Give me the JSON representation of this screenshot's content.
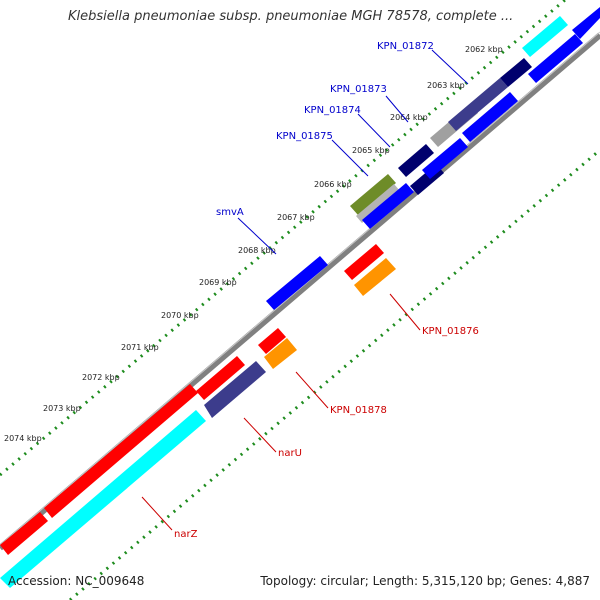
{
  "header": {
    "title": "Klebsiella pneumoniae subsp. pneumoniae MGH 78578, complete ..."
  },
  "footer": {
    "accession": "Accession: NC_009648",
    "topology": "Topology: circular; Length: 5,315,120 bp; Genes: 4,887"
  },
  "colors": {
    "forward_gene": "#0000ff",
    "reverse_gene": "#ff0000",
    "dark_gene": "#00006e",
    "navy_gene": "#3c3c8c",
    "cyan_gene": "#00ffff",
    "orange_gene": "#ff9400",
    "olive_gene": "#6e8c28",
    "backbone": "#808080",
    "dotted_track": "#1e8c1e"
  },
  "scale_labels": [
    "2062 kbp",
    "2063 kbp",
    "2064 kbp",
    "2065 kbp",
    "2066 kbp",
    "2067 kbp",
    "2068 kbp",
    "2069 kbp",
    "2070 kbp",
    "2071 kbp",
    "2072 kbp",
    "2073 kbp",
    "2074 kbp"
  ],
  "gene_labels": {
    "blue": [
      "KPN_01872",
      "KPN_01873",
      "KPN_01874",
      "KPN_01875",
      "smvA"
    ],
    "red": [
      "KPN_01876",
      "KPN_01878",
      "narU",
      "narZ"
    ]
  }
}
